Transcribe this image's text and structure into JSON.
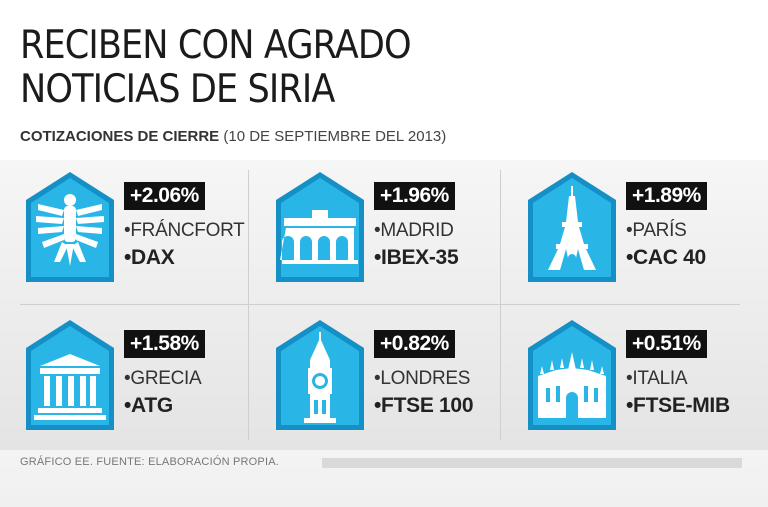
{
  "header": {
    "title_line1": "RECIBEN CON AGRADO",
    "title_line2": "NOTICIAS DE SIRIA",
    "subtitle_bold": "COTIZACIONES DE CIERRE",
    "subtitle_date": "(10 DE SEPTIEMBRE DEL 2013)"
  },
  "colors": {
    "shield": "#29b6e6",
    "shield_dark": "#1590c6",
    "badge": "#111111"
  },
  "markets": [
    {
      "change": "+2.06%",
      "city": "•FRÁNCFORT",
      "index": "•DAX",
      "icon": "eagle-icon"
    },
    {
      "change": "+1.96%",
      "city": "•MADRID",
      "index": "•IBEX-35",
      "icon": "gate-icon"
    },
    {
      "change": "+1.89%",
      "city": "•PARÍS",
      "index": "•CAC 40",
      "icon": "eiffel-tower-icon"
    },
    {
      "change": "+1.58%",
      "city": "•GRECIA",
      "index": "•ATG",
      "icon": "temple-icon"
    },
    {
      "change": "+0.82%",
      "city": "•LONDRES",
      "index": "•FTSE 100",
      "icon": "big-ben-icon"
    },
    {
      "change": "+0.51%",
      "city": "•ITALIA",
      "index": "•FTSE-MIB",
      "icon": "cathedral-icon"
    }
  ],
  "footer": {
    "credit": "GRÁFICO EE. FUENTE: ELABORACIÓN PROPIA."
  }
}
